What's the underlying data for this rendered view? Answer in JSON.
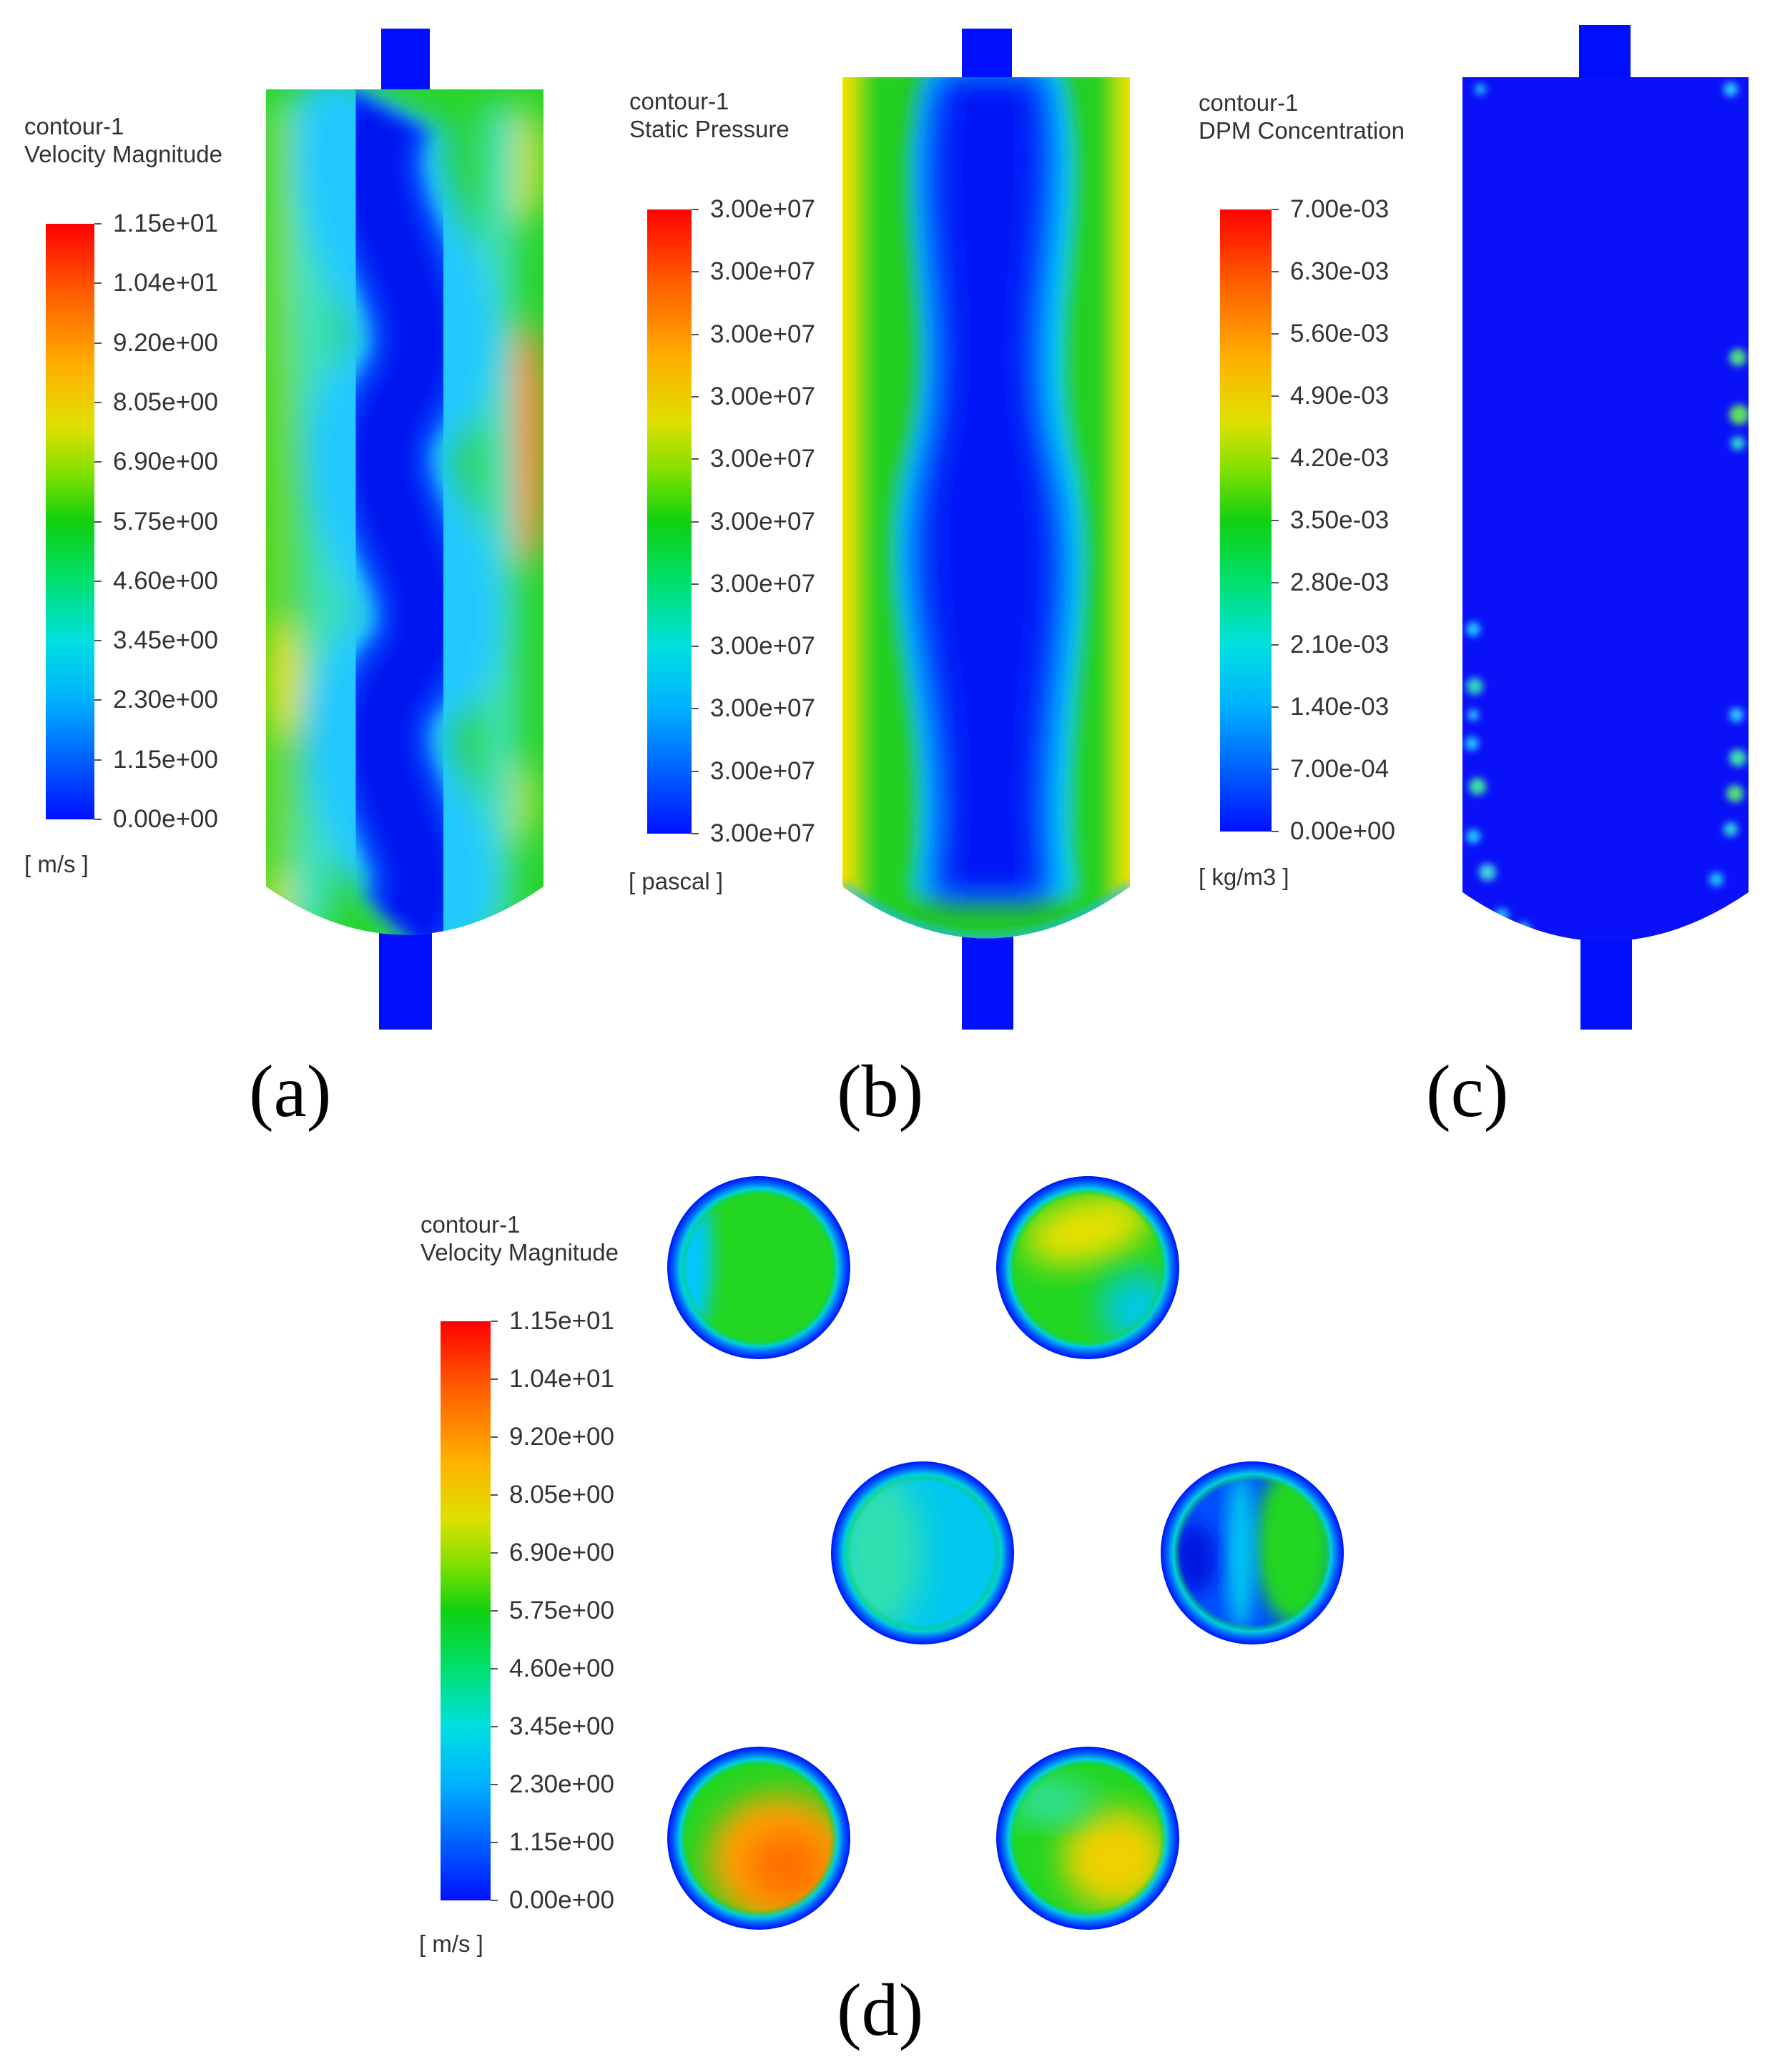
{
  "panels": {
    "a": {
      "label": "(a)",
      "legend_title": [
        "contour-1",
        "Velocity Magnitude"
      ],
      "ticks": [
        "1.15e+01",
        "1.04e+01",
        "9.20e+00",
        "8.05e+00",
        "6.90e+00",
        "5.75e+00",
        "4.60e+00",
        "3.45e+00",
        "2.30e+00",
        "1.15e+00",
        "0.00e+00"
      ],
      "units": "[ m/s ]"
    },
    "b": {
      "label": "(b)",
      "legend_title": [
        "contour-1",
        "Static Pressure"
      ],
      "ticks": [
        "3.00e+07",
        "3.00e+07",
        "3.00e+07",
        "3.00e+07",
        "3.00e+07",
        "3.00e+07",
        "3.00e+07",
        "3.00e+07",
        "3.00e+07",
        "3.00e+07",
        "3.00e+07"
      ],
      "units": "[ pascal ]"
    },
    "c": {
      "label": "(c)",
      "legend_title": [
        "contour-1",
        "DPM Concentration"
      ],
      "ticks": [
        "7.00e-03",
        "6.30e-03",
        "5.60e-03",
        "4.90e-03",
        "4.20e-03",
        "3.50e-03",
        "2.80e-03",
        "2.10e-03",
        "1.40e-03",
        "7.00e-04",
        "0.00e+00"
      ],
      "units": "[ kg/m3 ]"
    },
    "d": {
      "label": "(d)",
      "legend_title": [
        "contour-1",
        "Velocity Magnitude"
      ],
      "ticks": [
        "1.15e+01",
        "1.04e+01",
        "9.20e+00",
        "8.05e+00",
        "6.90e+00",
        "5.75e+00",
        "4.60e+00",
        "3.45e+00",
        "2.30e+00",
        "1.15e+00",
        "0.00e+00"
      ],
      "units": "[ m/s ]"
    }
  },
  "colors": {
    "low": "#0010ff",
    "mid": "#10d010",
    "high": "#ff0000"
  }
}
